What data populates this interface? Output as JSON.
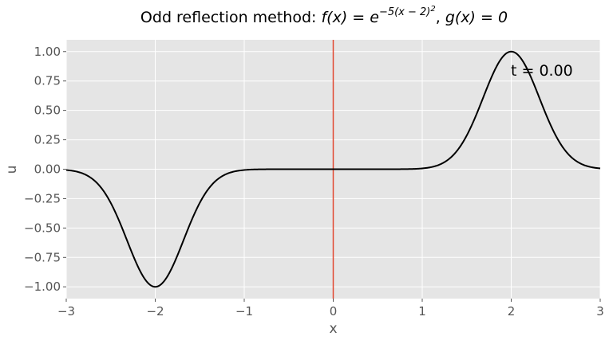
{
  "chart_data": {
    "type": "line",
    "title": {
      "prefix": "Odd reflection method: ",
      "f_lhs": "f(x) = e",
      "f_exp": "−5(x − 2)",
      "f_exp_sq": "2",
      "sep": ", ",
      "g": "g(x) = 0"
    },
    "xlabel": "x",
    "ylabel": "u",
    "xlim": [
      -3,
      3
    ],
    "ylim": [
      -1.1,
      1.1
    ],
    "xticks": [
      -3,
      -2,
      -1,
      0,
      1,
      2,
      3
    ],
    "xtick_labels": [
      "−3",
      "−2",
      "−1",
      "0",
      "1",
      "2",
      "3"
    ],
    "yticks": [
      1.0,
      0.75,
      0.5,
      0.25,
      0.0,
      -0.25,
      -0.5,
      -0.75,
      -1.0
    ],
    "ytick_labels": [
      "1.00",
      "0.75",
      "0.50",
      "0.25",
      "0.00",
      "−0.25",
      "−0.50",
      "−0.75",
      "−1.00"
    ],
    "grid": true,
    "annotation": "t = 0.00",
    "vline": {
      "x": 0,
      "color": "#e24a33"
    },
    "series": [
      {
        "color": "#000000",
        "function": "e^(-5(x-2)^2) - e^(-5(x+2)^2)",
        "x": [
          -3.0,
          -2.8,
          -2.6,
          -2.4,
          -2.3,
          -2.2,
          -2.1,
          -2.0,
          -1.9,
          -1.8,
          -1.7,
          -1.6,
          -1.4,
          -1.0,
          0.0,
          1.0,
          1.4,
          1.6,
          1.7,
          1.8,
          1.9,
          2.0,
          2.1,
          2.2,
          2.3,
          2.4,
          2.6,
          2.8,
          3.0
        ],
        "y": [
          -0.007,
          -0.041,
          -0.165,
          -0.449,
          -0.638,
          -0.819,
          -0.951,
          -1.0,
          -0.951,
          -0.819,
          -0.638,
          -0.449,
          -0.165,
          -0.007,
          0.0,
          0.007,
          0.165,
          0.449,
          0.638,
          0.819,
          0.951,
          1.0,
          0.951,
          0.819,
          0.638,
          0.449,
          0.165,
          0.041,
          0.007
        ]
      }
    ],
    "style": {
      "plot_bg": "#e5e5e5",
      "grid_color": "#ffffff",
      "tick_color": "#555555",
      "line_color": "#000000"
    }
  }
}
